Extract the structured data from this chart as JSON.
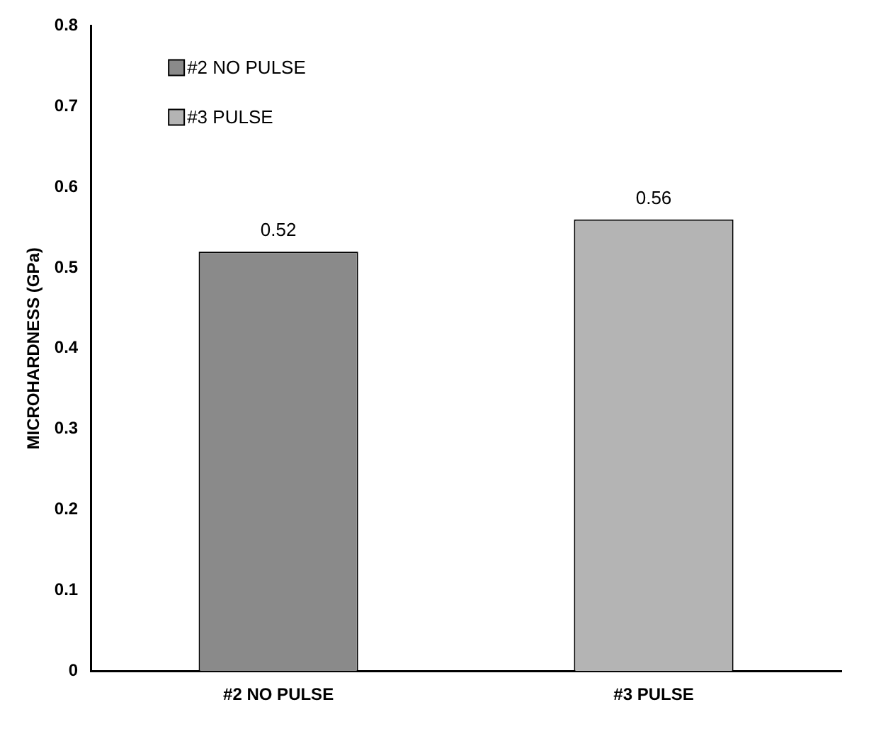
{
  "chart_data": {
    "type": "bar",
    "ylabel": "MICROHARDNESS (GPa)",
    "categories": [
      "#2 NO PULSE",
      "#3 PULSE"
    ],
    "series": [
      {
        "name": "#2 NO PULSE",
        "color": "#8a8a8a",
        "values": [
          0.52,
          null
        ]
      },
      {
        "name": "#3 PULSE",
        "color": "#b4b4b4",
        "values": [
          null,
          0.56
        ]
      }
    ],
    "ylim": [
      0,
      0.8
    ],
    "yticks": [
      0,
      0.1,
      0.2,
      0.3,
      0.4,
      0.5,
      0.6,
      0.7,
      0.8
    ],
    "grid": false,
    "legend": "top left",
    "data_labels": true
  }
}
